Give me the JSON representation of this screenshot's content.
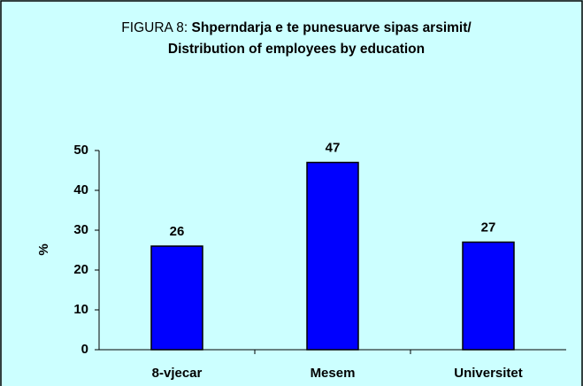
{
  "chart_data": {
    "type": "bar",
    "title_prefix": "FIGURA 8:",
    "title": "Shperndarja e te punesuarve sipas arsimit/ Distribution of employees by education",
    "y_label": "%",
    "categories": [
      "8-vjecar",
      "Mesem",
      "Universitet"
    ],
    "values": [
      26,
      47,
      27
    ],
    "color": "#0000ff",
    "ylim": [
      0,
      50
    ],
    "yticks": [
      0,
      10,
      20,
      30,
      40,
      50
    ],
    "grid": false
  }
}
